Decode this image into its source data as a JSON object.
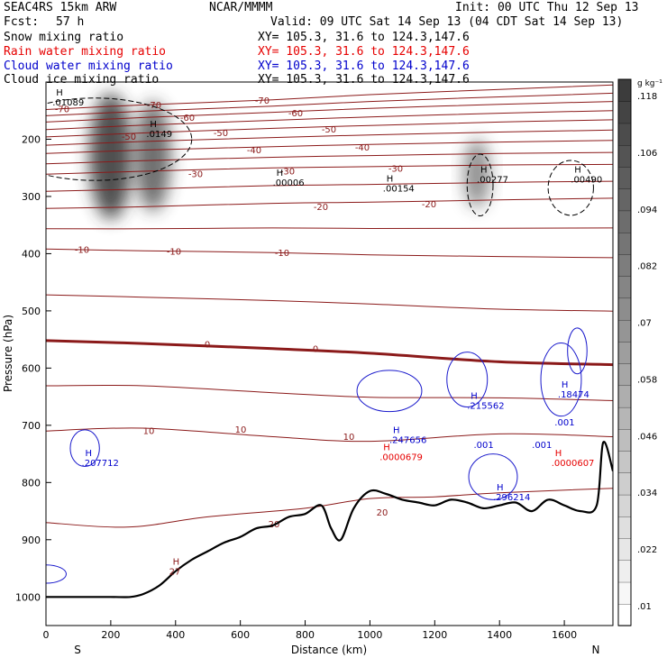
{
  "header": {
    "model": "SEAC4RS 15km ARW",
    "center": "NCAR/MMMM",
    "init": "Init: 00 UTC Thu 12 Sep 13",
    "fcst_label": "Fcst:",
    "fcst_value": "57 h",
    "valid": "Valid: 09 UTC Sat 14 Sep 13 (04 CDT Sat 14 Sep 13)",
    "fields": [
      {
        "name": "Snow mixing ratio",
        "xy": "XY= 105.3, 31.6 to 124.3,147.6",
        "color": "#000000"
      },
      {
        "name": "Rain water mixing ratio",
        "xy": "XY= 105.3, 31.6 to 124.3,147.6",
        "color": "#e60000"
      },
      {
        "name": "Cloud water mixing ratio",
        "xy": "XY= 105.3, 31.6 to 124.3,147.6",
        "color": "#0000cc"
      },
      {
        "name": "Cloud ice mixing ratio",
        "xy": "XY= 105.3, 31.6 to 124.3,147.6",
        "color": "#000000"
      }
    ]
  },
  "chart_data": {
    "type": "cross-section",
    "xlabel": "Distance (km)",
    "ylabel": "Pressure (hPa)",
    "xlim": [
      0,
      1750
    ],
    "ylim": [
      1050,
      100
    ],
    "x_ticks": [
      0,
      200,
      400,
      600,
      800,
      1000,
      1200,
      1400,
      1600
    ],
    "y_ticks": [
      200,
      300,
      400,
      500,
      600,
      700,
      800,
      900,
      1000
    ],
    "endpoint_labels": {
      "left": "S",
      "right": "N"
    },
    "colorbar": {
      "unit": "g kg⁻¹",
      "ticks": [
        ".01",
        ".022",
        ".034",
        ".046",
        ".058",
        ".07",
        ".082",
        ".094",
        ".106",
        ".118"
      ],
      "levels": 25
    },
    "temperature_contours": [
      {
        "label": "-70",
        "points": [
          [
            0,
            148
          ],
          [
            300,
            140
          ],
          [
            700,
            131
          ],
          [
            1000,
            122
          ],
          [
            1400,
            113
          ],
          [
            1750,
            105
          ]
        ]
      },
      {
        "label": "-60",
        "points": [
          [
            0,
            170
          ],
          [
            300,
            162
          ],
          [
            700,
            153
          ],
          [
            1000,
            146
          ],
          [
            1400,
            139
          ],
          [
            1750,
            134
          ]
        ]
      },
      {
        "label": "-50",
        "points": [
          [
            0,
            196
          ],
          [
            300,
            189
          ],
          [
            700,
            181
          ],
          [
            1000,
            176
          ],
          [
            1400,
            170
          ],
          [
            1750,
            166
          ]
        ]
      },
      {
        "label": "-40",
        "points": [
          [
            0,
            225
          ],
          [
            300,
            219
          ],
          [
            700,
            213
          ],
          [
            1000,
            209
          ],
          [
            1400,
            205
          ],
          [
            1750,
            202
          ]
        ]
      },
      {
        "label": "-30",
        "points": [
          [
            0,
            261
          ],
          [
            300,
            256
          ],
          [
            700,
            250
          ],
          [
            1000,
            248
          ],
          [
            1400,
            245
          ],
          [
            1750,
            244
          ]
        ]
      },
      {
        "label": "-20",
        "points": [
          [
            0,
            321
          ],
          [
            300,
            318
          ],
          [
            700,
            312
          ],
          [
            1000,
            310
          ],
          [
            1400,
            306
          ],
          [
            1750,
            303
          ]
        ]
      },
      {
        "label": "-10",
        "points": [
          [
            0,
            392
          ],
          [
            300,
            395
          ],
          [
            700,
            398
          ],
          [
            1000,
            402
          ],
          [
            1400,
            405
          ],
          [
            1750,
            407
          ]
        ]
      },
      {
        "label": "0",
        "points": [
          [
            0,
            552
          ],
          [
            300,
            557
          ],
          [
            700,
            566
          ],
          [
            1000,
            574
          ],
          [
            1400,
            589
          ],
          [
            1750,
            594
          ]
        ]
      },
      {
        "label": "10",
        "points": [
          [
            0,
            710
          ],
          [
            300,
            705
          ],
          [
            700,
            720
          ],
          [
            1000,
            728
          ],
          [
            1400,
            715
          ],
          [
            1750,
            720
          ]
        ]
      },
      {
        "label": "20",
        "points": [
          [
            0,
            870
          ],
          [
            250,
            878
          ],
          [
            500,
            860
          ],
          [
            800,
            845
          ],
          [
            1000,
            828
          ],
          [
            1200,
            825
          ],
          [
            1400,
            818
          ],
          [
            1750,
            810
          ]
        ]
      }
    ],
    "highs": [
      {
        "x": 20,
        "p": 130,
        "value": ".01089",
        "field": "Snow mixing ratio"
      },
      {
        "x": 310,
        "p": 185,
        "value": ".0149",
        "field": "Snow mixing ratio"
      },
      {
        "x": 700,
        "p": 270,
        "value": ".00006",
        "field": "Cloud ice mixing ratio"
      },
      {
        "x": 1040,
        "p": 280,
        "value": ".00154",
        "field": "Cloud ice mixing ratio"
      },
      {
        "x": 1330,
        "p": 265,
        "value": ".00277",
        "field": "Snow mixing ratio"
      },
      {
        "x": 1620,
        "p": 265,
        "value": ".00490",
        "field": "Cloud ice mixing ratio"
      },
      {
        "x": 110,
        "p": 760,
        "value": ".207712",
        "field": "Cloud water mixing ratio"
      },
      {
        "x": 1060,
        "p": 720,
        "value": ".247656",
        "field": "Cloud water mixing ratio"
      },
      {
        "x": 1300,
        "p": 660,
        "value": ".215562",
        "field": "Cloud water mixing ratio"
      },
      {
        "x": 1380,
        "p": 820,
        "value": ".296214",
        "field": "Cloud water mixing ratio"
      },
      {
        "x": 1580,
        "p": 640,
        "value": ".18474",
        "field": "Cloud water mixing ratio"
      },
      {
        "x": 1030,
        "p": 750,
        "value": ".0000679",
        "field": "Rain water mixing ratio"
      },
      {
        "x": 1560,
        "p": 760,
        "value": ".0000607",
        "field": "Rain water mixing ratio"
      },
      {
        "x": 380,
        "p": 950,
        "value": "27",
        "field": "Temperature"
      }
    ],
    "other_labels": [
      {
        "x": 1320,
        "p": 740,
        "text": ".001",
        "color": "#0000cc"
      },
      {
        "x": 1570,
        "p": 700,
        "text": ".001",
        "color": "#0000cc"
      },
      {
        "x": 1500,
        "p": 740,
        "text": ".001",
        "color": "#0000cc"
      }
    ],
    "terrain": {
      "x": [
        0,
        100,
        200,
        260,
        300,
        350,
        400,
        450,
        500,
        550,
        600,
        650,
        700,
        750,
        800,
        850,
        880,
        910,
        950,
        1000,
        1050,
        1100,
        1150,
        1200,
        1250,
        1300,
        1350,
        1400,
        1450,
        1500,
        1550,
        1600,
        1650,
        1700,
        1720,
        1750
      ],
      "p": [
        1000,
        1000,
        1000,
        1000,
        995,
        980,
        955,
        935,
        920,
        905,
        895,
        880,
        875,
        860,
        855,
        840,
        880,
        900,
        845,
        815,
        820,
        830,
        835,
        840,
        830,
        835,
        845,
        840,
        835,
        850,
        830,
        840,
        850,
        840,
        730,
        780
      ]
    }
  }
}
